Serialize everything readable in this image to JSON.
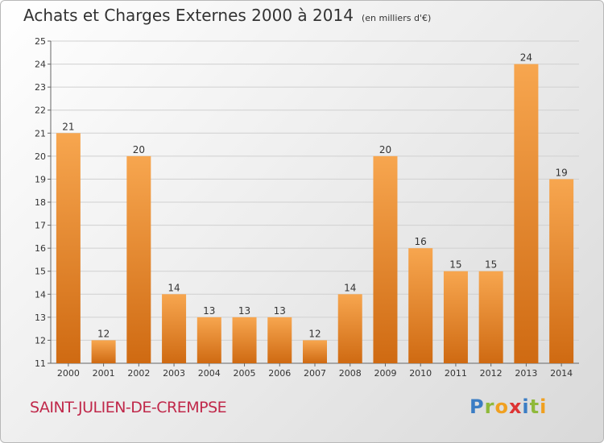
{
  "title": "Achats et Charges Externes 2000 à 2014",
  "unit": "(en milliers d'€)",
  "commune": "SAINT-JULIEN-DE-CREMPSE",
  "logo": "Proxiti",
  "colors": {
    "bar_top": "#f7a64f",
    "bar_bottom": "#cf6a12",
    "grid": "#d0d0d0",
    "axis_text": "#333333"
  },
  "chart_data": {
    "type": "bar",
    "title": "Achats et Charges Externes 2000 à 2014",
    "subtitle": "(en milliers d'€)",
    "categories": [
      "2000",
      "2001",
      "2002",
      "2003",
      "2004",
      "2005",
      "2006",
      "2007",
      "2008",
      "2009",
      "2010",
      "2011",
      "2012",
      "2013",
      "2014"
    ],
    "values": [
      21,
      12,
      20,
      14,
      13,
      13,
      13,
      12,
      14,
      20,
      16,
      15,
      15,
      24,
      19
    ],
    "ylim": [
      11,
      25
    ],
    "yticks": [
      11,
      12,
      13,
      14,
      15,
      16,
      17,
      18,
      19,
      20,
      21,
      22,
      23,
      24,
      25
    ],
    "grid": true,
    "data_labels": true,
    "legend": "none"
  }
}
